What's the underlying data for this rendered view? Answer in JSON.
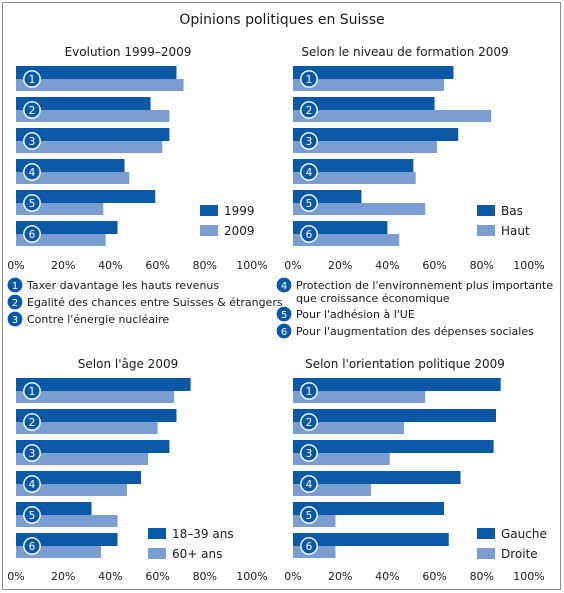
{
  "title": "Opinions politiques en Suisse",
  "colors": {
    "dark": "#0a58a6",
    "light": "#7b9ed2",
    "frame": "#8c8c8c",
    "text": "#1a1a1a"
  },
  "legend_items": [
    {
      "num": "1",
      "label": "Taxer davantage les hauts revenus"
    },
    {
      "num": "2",
      "label": "Egalité des chances entre Suisses & étrangers"
    },
    {
      "num": "3",
      "label": "Contre l'énergie nucléaire"
    },
    {
      "num": "4",
      "label": "Protection de l'environnement plus importante que croissance économique"
    },
    {
      "num": "5",
      "label": "Pour l'adhésion à l'UE"
    },
    {
      "num": "6",
      "label": "Pour l'augmentation des dépenses sociales"
    }
  ],
  "chart_data": [
    {
      "type": "bar",
      "orientation": "horizontal",
      "title": "Evolution 1999–2009",
      "categories": [
        "1",
        "2",
        "3",
        "4",
        "5",
        "6"
      ],
      "series": [
        {
          "name": "1999",
          "color": "#0a58a6",
          "values": [
            68,
            57,
            65,
            46,
            59,
            43
          ]
        },
        {
          "name": "2009",
          "color": "#7b9ed2",
          "values": [
            71,
            65,
            62,
            48,
            37,
            38
          ]
        }
      ],
      "xlim": [
        0,
        100
      ],
      "ticks": [
        "0%",
        "20%",
        "40%",
        "60%",
        "80%",
        "100%"
      ],
      "legend_position": "bottom-right"
    },
    {
      "type": "bar",
      "orientation": "horizontal",
      "title": "Selon le niveau de formation 2009",
      "categories": [
        "1",
        "2",
        "3",
        "4",
        "5",
        "6"
      ],
      "series": [
        {
          "name": "Bas",
          "color": "#0a58a6",
          "values": [
            68,
            60,
            70,
            51,
            29,
            40
          ]
        },
        {
          "name": "Haut",
          "color": "#7b9ed2",
          "values": [
            64,
            84,
            61,
            52,
            56,
            45
          ]
        }
      ],
      "xlim": [
        0,
        100
      ],
      "ticks": [
        "0%",
        "20%",
        "40%",
        "60%",
        "80%",
        "100%"
      ],
      "legend_position": "bottom-right"
    },
    {
      "type": "bar",
      "orientation": "horizontal",
      "title": "Selon l'âge 2009",
      "categories": [
        "1",
        "2",
        "3",
        "4",
        "5",
        "6"
      ],
      "series": [
        {
          "name": "18–39 ans",
          "color": "#0a58a6",
          "values": [
            74,
            68,
            65,
            53,
            32,
            43
          ]
        },
        {
          "name": "60+ ans",
          "color": "#7b9ed2",
          "values": [
            67,
            60,
            56,
            47,
            43,
            36
          ]
        }
      ],
      "xlim": [
        0,
        100
      ],
      "ticks": [
        "0%",
        "20%",
        "40%",
        "60%",
        "80%",
        "100%"
      ],
      "legend_position": "bottom-right"
    },
    {
      "type": "bar",
      "orientation": "horizontal",
      "title": "Selon l'orientation politique 2009",
      "categories": [
        "1",
        "2",
        "3",
        "4",
        "5",
        "6"
      ],
      "series": [
        {
          "name": "Gauche",
          "color": "#0a58a6",
          "values": [
            88,
            86,
            85,
            71,
            64,
            66
          ]
        },
        {
          "name": "Droite",
          "color": "#7b9ed2",
          "values": [
            56,
            47,
            41,
            33,
            18,
            18
          ]
        }
      ],
      "xlim": [
        0,
        100
      ],
      "ticks": [
        "0%",
        "20%",
        "40%",
        "60%",
        "80%",
        "100%"
      ],
      "legend_position": "bottom-right"
    }
  ]
}
